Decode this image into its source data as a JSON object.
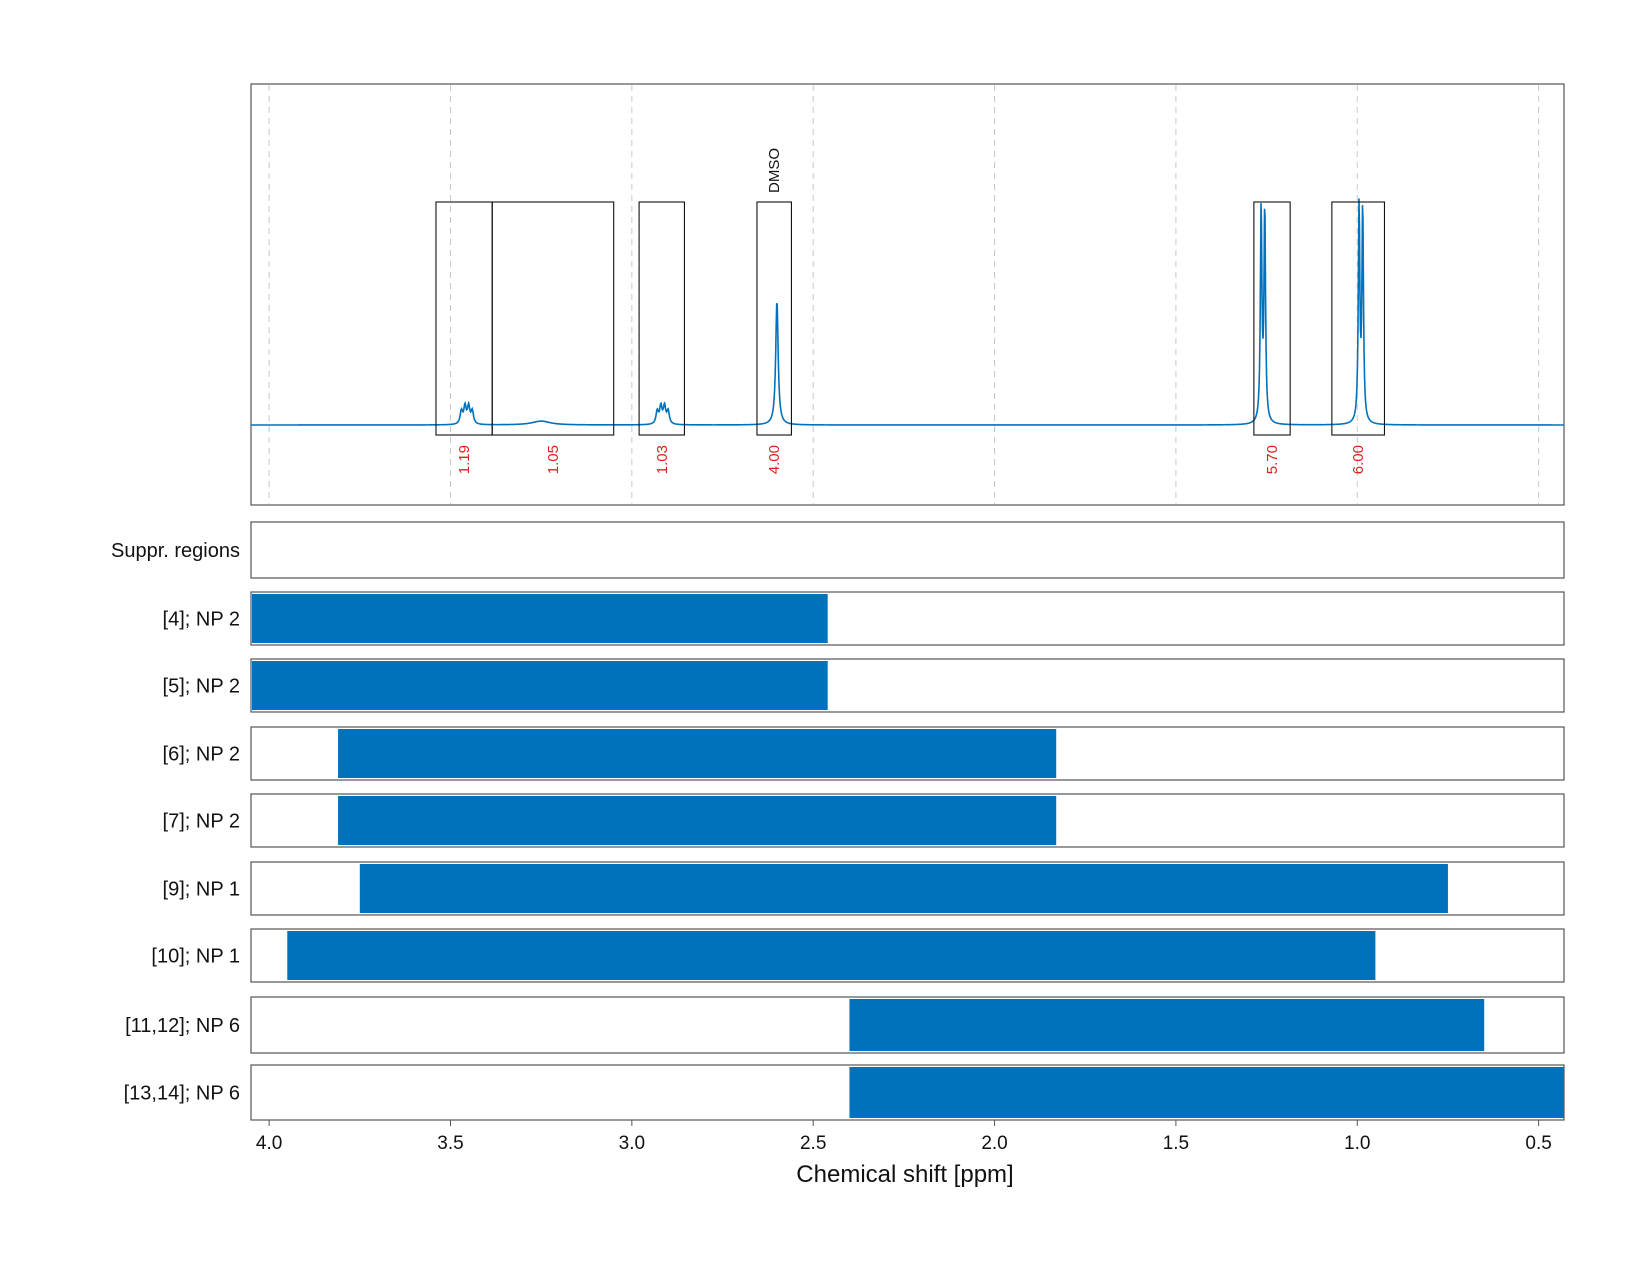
{
  "chart_data": {
    "type": "spectrum",
    "xlabel": "Chemical shift [ppm]",
    "xlim": [
      4.05,
      0.43
    ],
    "xticks": [
      4.0,
      3.5,
      3.0,
      2.5,
      2.0,
      1.5,
      1.0,
      0.5
    ],
    "xtick_labels": [
      "4.0",
      "3.5",
      "3.0",
      "2.5",
      "2.0",
      "1.5",
      "1.0",
      "0.5"
    ],
    "spectrum": {
      "color": "#0072bd",
      "baseline": 0.0,
      "ymax": 1.0,
      "peaks": [
        {
          "center": 3.47,
          "width": 0.004,
          "height": 0.06
        },
        {
          "center": 3.46,
          "width": 0.004,
          "height": 0.08
        },
        {
          "center": 3.45,
          "width": 0.004,
          "height": 0.08
        },
        {
          "center": 3.44,
          "width": 0.004,
          "height": 0.06
        },
        {
          "center": 3.25,
          "width": 0.03,
          "height": 0.018
        },
        {
          "center": 2.93,
          "width": 0.004,
          "height": 0.06
        },
        {
          "center": 2.92,
          "width": 0.004,
          "height": 0.08
        },
        {
          "center": 2.91,
          "width": 0.004,
          "height": 0.08
        },
        {
          "center": 2.9,
          "width": 0.004,
          "height": 0.06
        },
        {
          "center": 2.6,
          "width": 0.004,
          "height": 0.58
        },
        {
          "center": 1.265,
          "width": 0.0025,
          "height": 1.0
        },
        {
          "center": 1.255,
          "width": 0.0025,
          "height": 1.0
        },
        {
          "center": 0.995,
          "width": 0.0025,
          "height": 1.01
        },
        {
          "center": 0.985,
          "width": 0.0025,
          "height": 1.0
        }
      ]
    },
    "integration_regions": [
      {
        "from": 3.54,
        "to": 3.385,
        "label": "1.19"
      },
      {
        "from": 3.385,
        "to": 3.05,
        "label": "1.05"
      },
      {
        "from": 2.98,
        "to": 2.855,
        "label": "1.03"
      },
      {
        "from": 2.655,
        "to": 2.56,
        "label": "4.00",
        "peak_label": "DMSO"
      },
      {
        "from": 1.285,
        "to": 1.185,
        "label": "5.70"
      },
      {
        "from": 1.07,
        "to": 0.925,
        "label": "6.00"
      }
    ],
    "rows": [
      {
        "label": "Suppr. regions",
        "from": null,
        "to": null
      },
      {
        "label": "[4]; NP 2",
        "from": 4.05,
        "to": 2.46
      },
      {
        "label": "[5]; NP 2",
        "from": 4.05,
        "to": 2.46
      },
      {
        "label": "[6]; NP 2",
        "from": 3.81,
        "to": 1.83
      },
      {
        "label": "[7]; NP 2",
        "from": 3.81,
        "to": 1.83
      },
      {
        "label": "[9]; NP 1",
        "from": 3.75,
        "to": 0.75
      },
      {
        "label": "[10]; NP 1",
        "from": 3.95,
        "to": 0.95
      },
      {
        "label": "[11,12]; NP 6",
        "from": 2.4,
        "to": 0.65
      },
      {
        "label": "[13,14]; NP 6",
        "from": 2.4,
        "to": 0.43
      }
    ],
    "bar_color": "#0072bd",
    "grid": true
  }
}
